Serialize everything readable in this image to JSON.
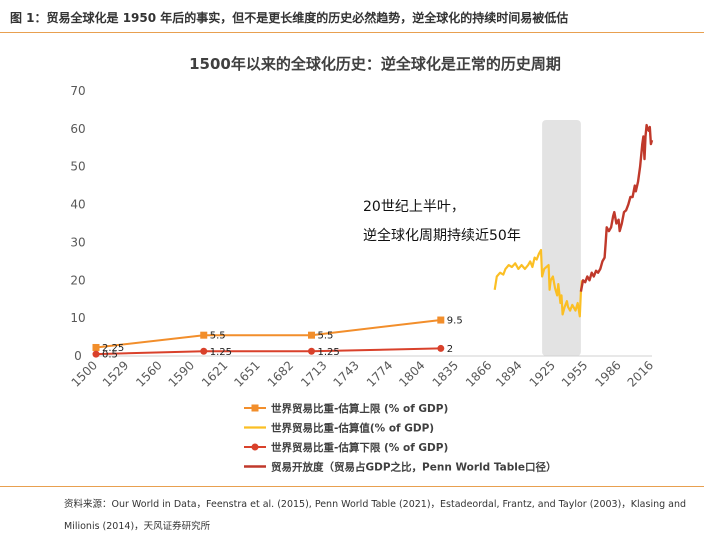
{
  "figure": {
    "caption": "图 1：贸易全球化是 1950 年后的事实，但不是更长维度的历史必然趋势，逆全球化的持续时间易被低估",
    "source": "资料来源：Our World in Data，Feenstra et al. (2015), Penn World Table (2021)，Estadeordal, Frantz, and Taylor (2003)，Klasing and Milionis (2014)，天风证券研究所"
  },
  "colors": {
    "upper": "#f28e2b",
    "estimate": "#fbbf24",
    "lower": "#d9412b",
    "openness": "#c0392b",
    "shade": "#e3e3e3",
    "rule": "#e8a050"
  },
  "chart_data": {
    "type": "line",
    "title": "1500年以来的全球化历史：逆全球化是正常的历史周期",
    "xlabel": "",
    "ylabel": "",
    "x_ticks": [
      1500,
      1529,
      1560,
      1590,
      1621,
      1651,
      1682,
      1713,
      1743,
      1774,
      1804,
      1835,
      1866,
      1894,
      1925,
      1955,
      1986,
      2016
    ],
    "y_ticks": [
      0,
      10,
      20,
      30,
      40,
      50,
      60,
      70
    ],
    "xlim": [
      1500,
      2016
    ],
    "ylim": [
      0,
      70
    ],
    "grid": false,
    "legend_position": "bottom",
    "shaded_range": [
      1914,
      1950
    ],
    "annotation": [
      "20世纪上半叶，",
      "逆全球化周期持续近50年"
    ],
    "series": [
      {
        "name": "世界贸易比重-估算上限 (% of GDP)",
        "style": "line-square",
        "points": [
          [
            1500,
            2.25
          ],
          [
            1600,
            5.5
          ],
          [
            1700,
            5.5
          ],
          [
            1820,
            9.5
          ]
        ],
        "labels": [
          "2.25",
          "5.5",
          "5.5",
          "9.5"
        ]
      },
      {
        "name": "世界贸易比重-估算值(% of GDP)",
        "style": "line",
        "points": [
          [
            1870,
            17.5
          ],
          [
            1872,
            21
          ],
          [
            1875,
            22
          ],
          [
            1878,
            21.5
          ],
          [
            1880,
            23
          ],
          [
            1883,
            24
          ],
          [
            1886,
            23.5
          ],
          [
            1889,
            24.5
          ],
          [
            1892,
            23
          ],
          [
            1895,
            24
          ],
          [
            1898,
            23
          ],
          [
            1901,
            24
          ],
          [
            1903,
            25
          ],
          [
            1905,
            23.5
          ],
          [
            1907,
            26
          ],
          [
            1909,
            25.5
          ],
          [
            1911,
            27
          ],
          [
            1913,
            28
          ],
          [
            1914,
            21
          ],
          [
            1916,
            23
          ],
          [
            1918,
            23.5
          ],
          [
            1920,
            24
          ],
          [
            1921,
            17.5
          ],
          [
            1922,
            20
          ],
          [
            1924,
            21
          ],
          [
            1926,
            18
          ],
          [
            1928,
            16
          ],
          [
            1929,
            19
          ],
          [
            1931,
            14
          ],
          [
            1932,
            16
          ],
          [
            1933,
            11
          ],
          [
            1935,
            13
          ],
          [
            1937,
            14.5
          ],
          [
            1938,
            13
          ],
          [
            1940,
            12
          ],
          [
            1942,
            13.5
          ],
          [
            1945,
            12
          ],
          [
            1947,
            14
          ],
          [
            1949,
            10.5
          ],
          [
            1950,
            17
          ],
          [
            1951,
            20
          ]
        ]
      },
      {
        "name": "世界贸易比重-估算下限 (% of GDP)",
        "style": "line-circle",
        "points": [
          [
            1500,
            0.5
          ],
          [
            1600,
            1.25
          ],
          [
            1700,
            1.25
          ],
          [
            1820,
            2
          ]
        ],
        "labels": [
          "0.5",
          "1.25",
          "1.25",
          "2"
        ]
      },
      {
        "name": "贸易开放度（贸易占GDP之比，Penn World Table口径）",
        "style": "line",
        "points": [
          [
            1950,
            17
          ],
          [
            1952,
            20
          ],
          [
            1954,
            19.5
          ],
          [
            1956,
            21
          ],
          [
            1958,
            20
          ],
          [
            1960,
            22
          ],
          [
            1962,
            21
          ],
          [
            1964,
            22.5
          ],
          [
            1966,
            22
          ],
          [
            1968,
            23
          ],
          [
            1970,
            25
          ],
          [
            1972,
            26
          ],
          [
            1973,
            30
          ],
          [
            1974,
            34
          ],
          [
            1976,
            33
          ],
          [
            1978,
            34
          ],
          [
            1980,
            37
          ],
          [
            1981,
            38
          ],
          [
            1983,
            35
          ],
          [
            1985,
            36
          ],
          [
            1986,
            33
          ],
          [
            1988,
            35
          ],
          [
            1990,
            38
          ],
          [
            1992,
            38.5
          ],
          [
            1994,
            40
          ],
          [
            1996,
            42
          ],
          [
            1998,
            42
          ],
          [
            2000,
            45
          ],
          [
            2001,
            43.5
          ],
          [
            2003,
            46
          ],
          [
            2005,
            50
          ],
          [
            2007,
            56
          ],
          [
            2008,
            58
          ],
          [
            2009,
            52
          ],
          [
            2010,
            58
          ],
          [
            2011,
            61
          ],
          [
            2012,
            60
          ],
          [
            2013,
            59.5
          ],
          [
            2014,
            60.5
          ],
          [
            2015,
            56
          ],
          [
            2016,
            57
          ]
        ]
      }
    ]
  }
}
